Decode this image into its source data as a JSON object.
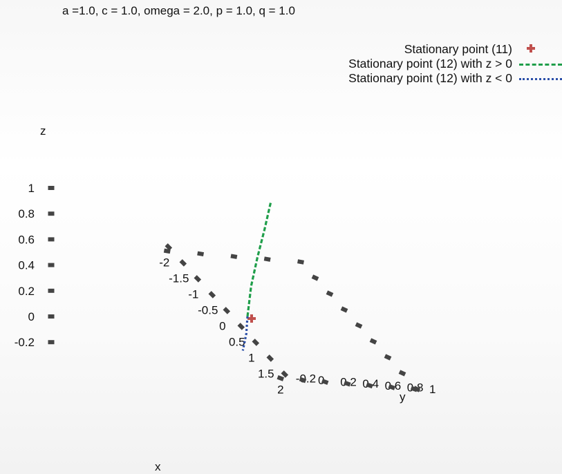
{
  "chart_data": {
    "type": "line",
    "projection": "3d",
    "title": "a =1.0, c = 1.0, omega = 2.0, p = 1.0, q = 1.0",
    "axes": {
      "x": {
        "label": "x",
        "ticks": [
          "-2",
          "-1.5",
          "-1",
          "-0.5",
          "0",
          "0.5",
          "1",
          "1.5",
          "2"
        ],
        "range": [
          -2,
          2
        ]
      },
      "y": {
        "label": "y",
        "ticks": [
          "-0.2",
          "0",
          "0.2",
          "0.4",
          "0.6",
          "0.8",
          "1"
        ],
        "range": [
          -0.2,
          1
        ]
      },
      "z": {
        "label": "z",
        "ticks": [
          "-0.2",
          "0",
          "0.2",
          "0.4",
          "0.6",
          "0.8",
          "1"
        ],
        "range": [
          -0.2,
          1
        ]
      }
    },
    "legend_position": "top-right",
    "series": [
      {
        "name": "Stationary point (11)",
        "style": "cross",
        "color": "#c0504d",
        "points": [
          [
            0,
            0,
            0
          ]
        ]
      },
      {
        "name": "Stationary point (12) with z > 0",
        "style": "dashed",
        "color": "#1f9e4a",
        "points": [
          [
            0,
            0,
            0
          ],
          [
            0.05,
            0.02,
            0.25
          ],
          [
            0.15,
            0.05,
            0.5
          ],
          [
            0.28,
            0.08,
            0.75
          ],
          [
            0.42,
            0.1,
            1.0
          ]
        ]
      },
      {
        "name": "Stationary point (12) with z < 0",
        "style": "dotted",
        "color": "#2b4fa8",
        "points": [
          [
            0,
            0,
            0
          ],
          [
            0.15,
            -0.05,
            -0.1
          ],
          [
            0.3,
            -0.12,
            -0.2
          ]
        ]
      }
    ],
    "grid": false
  }
}
